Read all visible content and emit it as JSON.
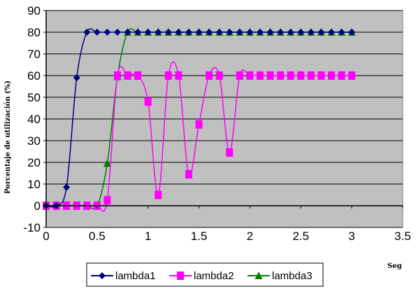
{
  "chart_data": {
    "type": "line",
    "title": "",
    "xlabel": "Seg",
    "ylabel": "Porcentaje de utilización (%)",
    "xlim": [
      0,
      3.5
    ],
    "ylim": [
      -10,
      90
    ],
    "xticks": [
      "0",
      "0.5",
      "1",
      "1.5",
      "2",
      "2.5",
      "3",
      "3.5"
    ],
    "yticks": [
      "-10",
      "0",
      "10",
      "20",
      "30",
      "40",
      "50",
      "60",
      "70",
      "80",
      "90"
    ],
    "grid": "horizontal",
    "legend_position": "bottom",
    "plot_background": "#c0c0c0",
    "series": [
      {
        "name": "lambda1",
        "color": "#000080",
        "marker": "diamond",
        "x": [
          0,
          0.1,
          0.2,
          0.3,
          0.4,
          0.5,
          0.6,
          0.7,
          0.8,
          0.9,
          1.0,
          1.1,
          1.2,
          1.3,
          1.4,
          1.5,
          1.6,
          1.7,
          1.8,
          1.9,
          2.0,
          2.1,
          2.2,
          2.3,
          2.4,
          2.5,
          2.6,
          2.7,
          2.8,
          2.9,
          3.0
        ],
        "y": [
          0,
          0,
          8.5,
          59,
          80,
          80,
          80,
          80,
          80,
          80,
          80,
          80,
          80,
          80,
          80,
          80,
          80,
          80,
          80,
          80,
          80,
          80,
          80,
          80,
          80,
          80,
          80,
          80,
          80,
          80,
          80
        ]
      },
      {
        "name": "lambda2",
        "color": "#ff00ff",
        "marker": "square",
        "x": [
          0,
          0.1,
          0.2,
          0.3,
          0.4,
          0.5,
          0.6,
          0.7,
          0.8,
          0.9,
          1.0,
          1.1,
          1.2,
          1.3,
          1.4,
          1.5,
          1.6,
          1.7,
          1.8,
          1.9,
          2.0,
          2.1,
          2.2,
          2.3,
          2.4,
          2.5,
          2.6,
          2.7,
          2.8,
          2.9,
          3.0
        ],
        "y": [
          0,
          0,
          0,
          0,
          0,
          0,
          2.5,
          60,
          60,
          60,
          48,
          5,
          60,
          60,
          14.5,
          37.5,
          60,
          60,
          24.5,
          60,
          60,
          60,
          60,
          60,
          60,
          60,
          60,
          60,
          60,
          60,
          60
        ]
      },
      {
        "name": "lambda3",
        "color": "#008000",
        "marker": "triangle",
        "x": [
          0,
          0.1,
          0.2,
          0.3,
          0.4,
          0.5,
          0.6,
          0.7,
          0.8,
          0.9,
          1.0,
          1.1,
          1.2,
          1.3,
          1.4,
          1.5,
          1.6,
          1.7,
          1.8,
          1.9,
          2.0,
          2.1,
          2.2,
          2.3,
          2.4,
          2.5,
          2.6,
          2.7,
          2.8,
          2.9,
          3.0
        ],
        "y": [
          0,
          0,
          0,
          0,
          0,
          0,
          19.5,
          59.5,
          80,
          80,
          80,
          80,
          80,
          80,
          80,
          80,
          80,
          80,
          80,
          80,
          80,
          80,
          80,
          80,
          80,
          80,
          80,
          80,
          80,
          80,
          80
        ]
      }
    ]
  }
}
